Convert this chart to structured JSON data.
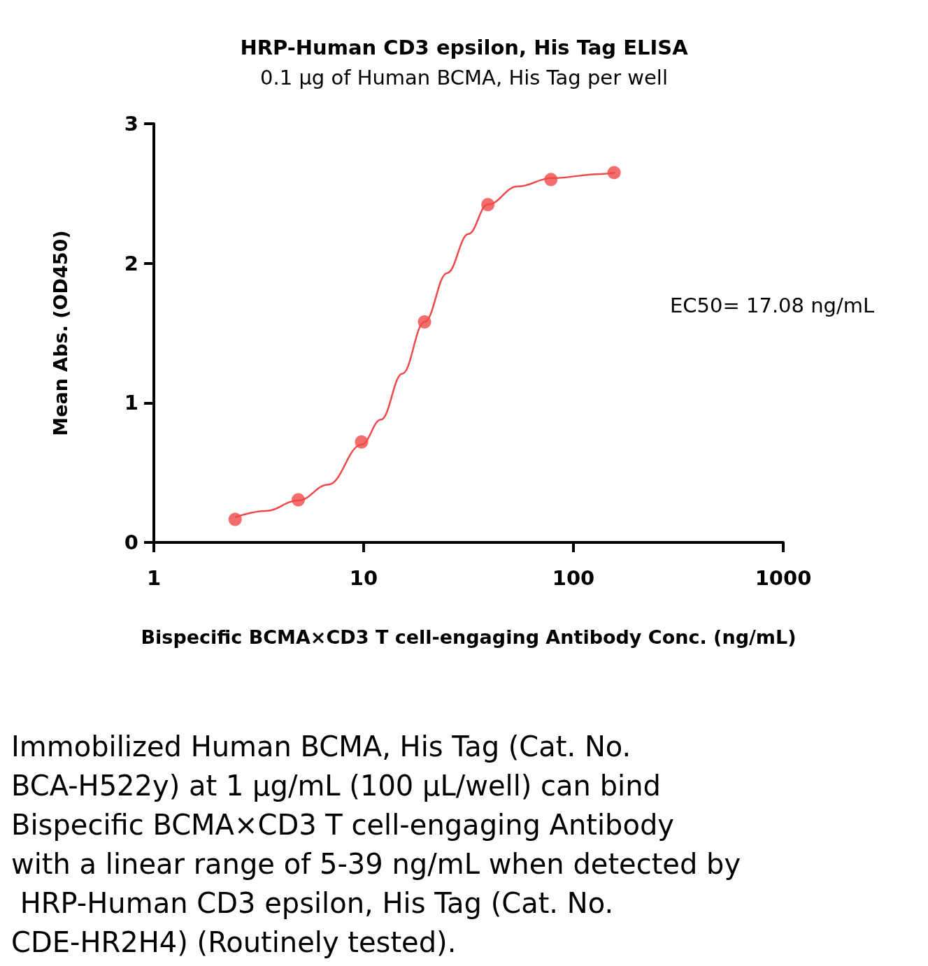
{
  "chart_data": {
    "type": "scatter",
    "title": "HRP-Human CD3 epsilon, His Tag ELISA",
    "subtitle": "0.1 μg of Human BCMA, His Tag per well",
    "xlabel": "Bispecific BCMA×CD3 T cell-engaging Antibody Conc. (ng/mL)",
    "ylabel": "Mean Abs. (OD450)",
    "log": "x",
    "xlim": [
      1,
      1000
    ],
    "xticks": [
      1,
      10,
      100,
      1000
    ],
    "ylim": [
      0,
      3
    ],
    "yticks": [
      0,
      1,
      2,
      3
    ],
    "grid": false,
    "marker": "circle",
    "series": [
      {
        "type": "scatter",
        "color": "#f04848",
        "x": [
          2.44,
          4.88,
          9.77,
          19.5,
          39.1,
          78.1,
          156.25
        ],
        "values": [
          0.165,
          0.305,
          0.72,
          1.58,
          2.42,
          2.6,
          2.65
        ]
      },
      {
        "type": "line",
        "color": "#f04848",
        "marker": "none",
        "x": [
          2.44,
          3.4,
          4.88,
          6.8,
          9.77,
          12.1,
          15.3,
          19.5,
          25,
          31.6,
          39,
          54,
          79,
          135,
          158
        ],
        "values": [
          0.18,
          0.225,
          0.3,
          0.415,
          0.7,
          0.88,
          1.21,
          1.58,
          1.93,
          2.21,
          2.42,
          2.55,
          2.61,
          2.64,
          2.65
        ]
      }
    ],
    "annotations": [
      "EC50= 17.08 ng/mL",
      "Immobilized Human BCMA, His Tag (Cat. No. BCA-H522y) at 1 μg/mL (100 μL/well) can bind Bispecific BCMA×CD3 T cell-engaging Antibody with a linear range of 5-39 ng/mL when detected by HRP-Human CD3 epsilon, His Tag (Cat. No. CDE-HR2H4) (Routinely tested)."
    ]
  }
}
